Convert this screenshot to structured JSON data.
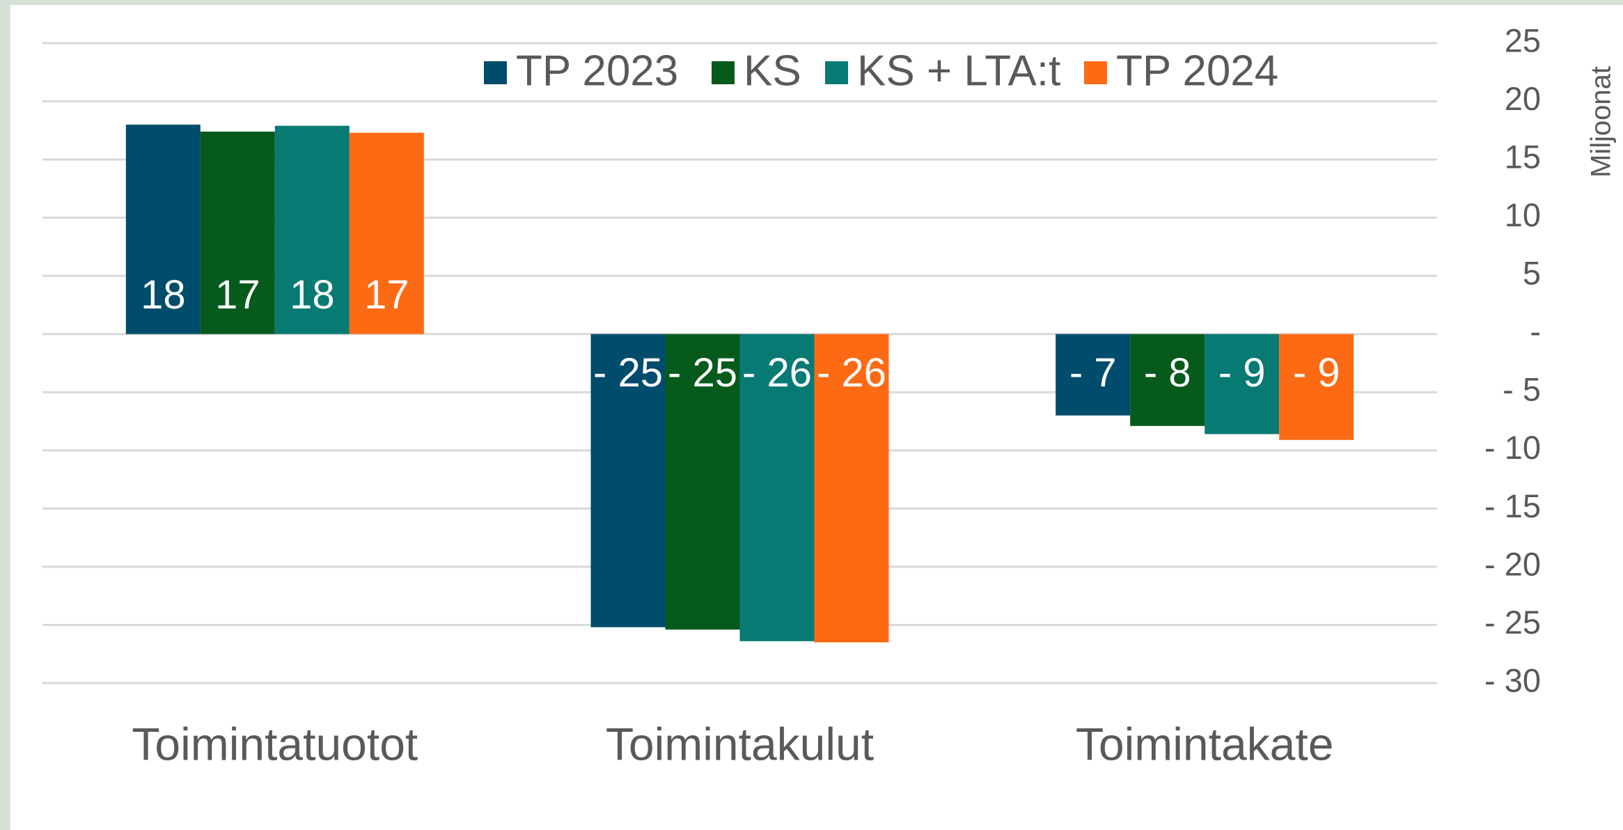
{
  "chart_data": {
    "type": "bar",
    "axis_title": "Miljoonat",
    "categories": [
      "Toimintatuotot",
      "Toimintakulut",
      "Toimintakate"
    ],
    "series": [
      {
        "name": "TP 2023",
        "color": "#004c6d",
        "values": [
          18.0,
          -25.2,
          -7.0
        ],
        "value_labels": [
          "18",
          "- 25",
          "- 7"
        ]
      },
      {
        "name": "KS",
        "color": "#055a1c",
        "values": [
          17.4,
          -25.4,
          -7.9
        ],
        "value_labels": [
          "17",
          "- 25",
          "- 8"
        ]
      },
      {
        "name": "KS + LTA:t",
        "color": "#087a74",
        "values": [
          17.9,
          -26.4,
          -8.6
        ],
        "value_labels": [
          "18",
          "- 26",
          "- 9"
        ]
      },
      {
        "name": "TP 2024",
        "color": "#fd6a14",
        "values": [
          17.3,
          -26.5,
          -9.1
        ],
        "value_labels": [
          "17",
          "- 26",
          "- 9"
        ]
      }
    ],
    "ylim": [
      -30,
      25
    ],
    "yticks": [
      {
        "value": -30,
        "label": "- 30"
      },
      {
        "value": -25,
        "label": "- 25"
      },
      {
        "value": -20,
        "label": "- 20"
      },
      {
        "value": -15,
        "label": "- 15"
      },
      {
        "value": -10,
        "label": "- 10"
      },
      {
        "value": -5,
        "label": "- 5"
      },
      {
        "value": 0,
        "label": "-"
      },
      5,
      10,
      15,
      20,
      25
    ],
    "grid": true,
    "legend": "top",
    "y_axis_side": "right"
  }
}
